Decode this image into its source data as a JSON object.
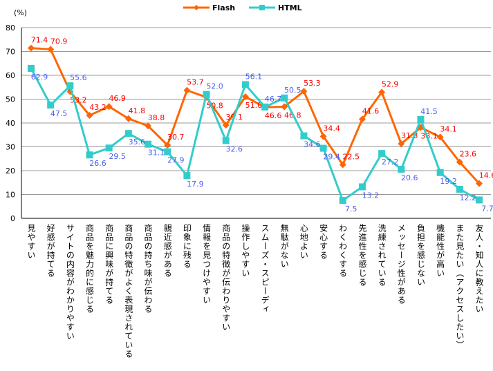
{
  "chart_data": {
    "type": "line",
    "title": "",
    "ylabel": "(%)",
    "ylim": [
      0,
      80
    ],
    "yticks": [
      0,
      10,
      20,
      30,
      40,
      50,
      60,
      70,
      80
    ],
    "grid": true,
    "legend_position": "top-center",
    "colors": {
      "Flash": "#ff6600",
      "HTML": "#33cccc",
      "Flash_label": "#ff0000",
      "HTML_label": "#4b5ff0"
    },
    "categories": [
      "見やすい",
      "好感が持てる",
      "サイトの内容がわかりやすい",
      "商品を魅力的に感じる",
      "商品に興味が持てる",
      "商品の特徴がよく表現されている",
      "商品の持ち味が伝わる",
      "親近感がある",
      "印象に残る",
      "情報を見つけやすい",
      "商品の特徴が伝わりやすい",
      "操作しやすい",
      "スムーズ・スピーディ",
      "無駄がない",
      "心地よい",
      "安心する",
      "わくわくする",
      "先進性を感じる",
      "洗練されている",
      "メッセージ性がある",
      "負担を感じない",
      "機能性が高い",
      "また見たい（アクセスしたい）",
      "友人・知人に教えたい"
    ],
    "series": [
      {
        "name": "Flash",
        "values": [
          71.4,
          70.9,
          53.2,
          43.2,
          46.9,
          41.8,
          38.8,
          30.7,
          53.7,
          50.8,
          39.1,
          51.0,
          46.6,
          46.8,
          53.3,
          34.4,
          22.5,
          41.6,
          52.9,
          31.3,
          38.1,
          34.1,
          23.6,
          14.6
        ]
      },
      {
        "name": "HTML",
        "values": [
          62.9,
          47.5,
          55.6,
          26.6,
          29.5,
          35.6,
          31.1,
          27.9,
          17.9,
          52.0,
          32.6,
          56.1,
          46.7,
          50.5,
          34.6,
          29.4,
          7.5,
          13.2,
          27.2,
          20.6,
          41.5,
          19.2,
          12.2,
          7.7
        ]
      }
    ]
  }
}
